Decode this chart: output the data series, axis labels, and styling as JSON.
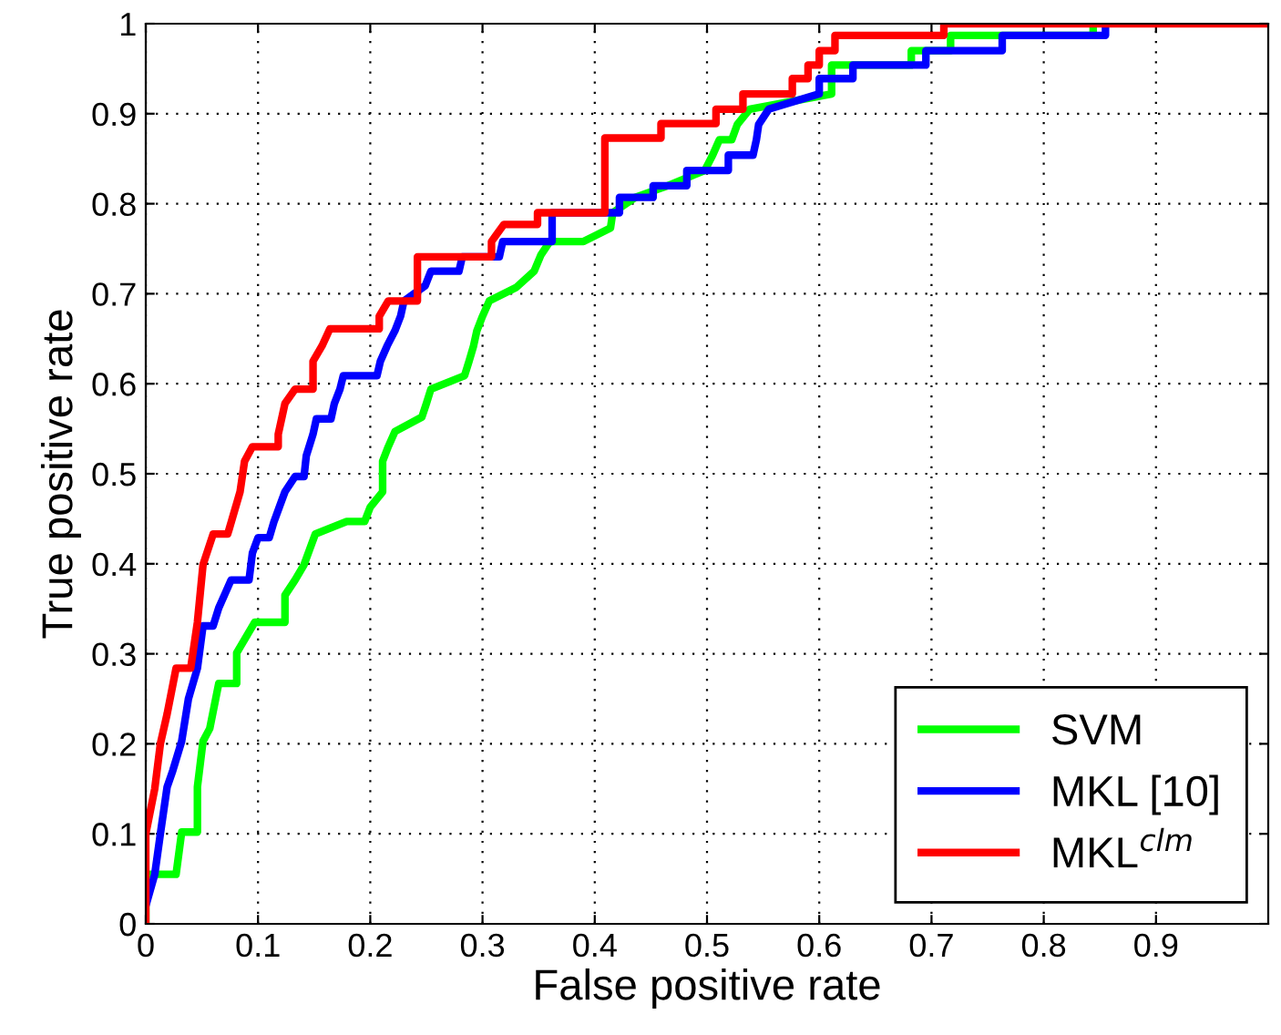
{
  "chart_data": {
    "type": "line",
    "xlabel": "False positive rate",
    "ylabel": "True positive rate",
    "xlim": [
      0,
      1
    ],
    "ylim": [
      0,
      1
    ],
    "xticks": [
      0,
      0.1,
      0.2,
      0.3,
      0.4,
      0.5,
      0.6,
      0.7,
      0.8,
      0.9
    ],
    "yticks": [
      0,
      0.1,
      0.2,
      0.3,
      0.4,
      0.5,
      0.6,
      0.7,
      0.8,
      0.9,
      1
    ],
    "grid": true,
    "legend": "bottom right",
    "marker": "none",
    "line_style": "solid",
    "series": [
      {
        "name": "SVM",
        "color": "#00ff00",
        "x": [
          0,
          0,
          0.027,
          0.032,
          0.046,
          0.046,
          0.051,
          0.057,
          0.065,
          0.081,
          0.081,
          0.089,
          0.097,
          0.124,
          0.124,
          0.133,
          0.141,
          0.146,
          0.151,
          0.179,
          0.195,
          0.2,
          0.211,
          0.211,
          0.216,
          0.222,
          0.246,
          0.25,
          0.254,
          0.284,
          0.288,
          0.292,
          0.295,
          0.3,
          0.306,
          0.33,
          0.346,
          0.352,
          0.36,
          0.39,
          0.414,
          0.416,
          0.436,
          0.465,
          0.498,
          0.505,
          0.511,
          0.522,
          0.527,
          0.538,
          0.611,
          0.611,
          0.682,
          0.682,
          0.717,
          0.717,
          0.844,
          0.844
        ],
        "values": [
          0,
          0.055,
          0.055,
          0.102,
          0.102,
          0.152,
          0.203,
          0.217,
          0.267,
          0.267,
          0.301,
          0.318,
          0.335,
          0.335,
          0.365,
          0.382,
          0.399,
          0.416,
          0.433,
          0.447,
          0.447,
          0.463,
          0.48,
          0.514,
          0.53,
          0.547,
          0.563,
          0.578,
          0.594,
          0.609,
          0.625,
          0.642,
          0.659,
          0.675,
          0.692,
          0.707,
          0.725,
          0.743,
          0.758,
          0.758,
          0.773,
          0.79,
          0.807,
          0.82,
          0.837,
          0.854,
          0.871,
          0.871,
          0.888,
          0.905,
          0.922,
          0.954,
          0.954,
          0.97,
          0.97,
          0.987,
          0.987,
          1
        ]
      },
      {
        "name": "MKL [10]",
        "color": "#0000ff",
        "x": [
          0,
          0,
          0.008,
          0.013,
          0.019,
          0.024,
          0.032,
          0.038,
          0.046,
          0.051,
          0.06,
          0.065,
          0.07,
          0.076,
          0.092,
          0.095,
          0.1,
          0.11,
          0.114,
          0.119,
          0.124,
          0.133,
          0.141,
          0.143,
          0.149,
          0.152,
          0.165,
          0.168,
          0.173,
          0.176,
          0.206,
          0.209,
          0.215,
          0.222,
          0.227,
          0.23,
          0.249,
          0.254,
          0.279,
          0.282,
          0.315,
          0.318,
          0.362,
          0.362,
          0.422,
          0.422,
          0.452,
          0.452,
          0.482,
          0.482,
          0.519,
          0.519,
          0.541,
          0.544,
          0.546,
          0.555,
          0.6,
          0.6,
          0.63,
          0.63,
          0.695,
          0.695,
          0.763,
          0.763,
          0.855,
          0.855
        ],
        "values": [
          0.02,
          0.02,
          0.055,
          0.1,
          0.152,
          0.17,
          0.203,
          0.25,
          0.284,
          0.331,
          0.331,
          0.351,
          0.365,
          0.382,
          0.382,
          0.412,
          0.429,
          0.429,
          0.446,
          0.463,
          0.48,
          0.497,
          0.497,
          0.52,
          0.544,
          0.561,
          0.561,
          0.578,
          0.594,
          0.609,
          0.609,
          0.625,
          0.642,
          0.659,
          0.675,
          0.692,
          0.709,
          0.725,
          0.725,
          0.741,
          0.741,
          0.758,
          0.758,
          0.79,
          0.79,
          0.807,
          0.807,
          0.82,
          0.82,
          0.837,
          0.837,
          0.854,
          0.854,
          0.871,
          0.888,
          0.905,
          0.922,
          0.939,
          0.939,
          0.954,
          0.954,
          0.97,
          0.97,
          0.987,
          0.987,
          1
        ]
      },
      {
        "name": "MKL$^{clm}$",
        "color": "#ff0000",
        "x": [
          0,
          0,
          0.008,
          0.013,
          0.019,
          0.027,
          0.04,
          0.046,
          0.051,
          0.06,
          0.073,
          0.084,
          0.088,
          0.095,
          0.118,
          0.118,
          0.124,
          0.133,
          0.149,
          0.149,
          0.157,
          0.164,
          0.208,
          0.208,
          0.216,
          0.242,
          0.242,
          0.308,
          0.308,
          0.319,
          0.349,
          0.349,
          0.409,
          0.409,
          0.459,
          0.459,
          0.508,
          0.508,
          0.532,
          0.532,
          0.576,
          0.576,
          0.59,
          0.59,
          0.6,
          0.6,
          0.614,
          0.614,
          0.711,
          0.711,
          1
        ],
        "values": [
          0,
          0.1,
          0.15,
          0.2,
          0.233,
          0.284,
          0.284,
          0.335,
          0.399,
          0.433,
          0.433,
          0.48,
          0.514,
          0.53,
          0.53,
          0.544,
          0.578,
          0.594,
          0.594,
          0.625,
          0.642,
          0.661,
          0.661,
          0.675,
          0.692,
          0.692,
          0.741,
          0.741,
          0.758,
          0.777,
          0.777,
          0.79,
          0.79,
          0.873,
          0.873,
          0.889,
          0.889,
          0.905,
          0.905,
          0.922,
          0.922,
          0.939,
          0.939,
          0.954,
          0.954,
          0.97,
          0.97,
          0.987,
          0.987,
          1,
          1
        ]
      }
    ]
  }
}
